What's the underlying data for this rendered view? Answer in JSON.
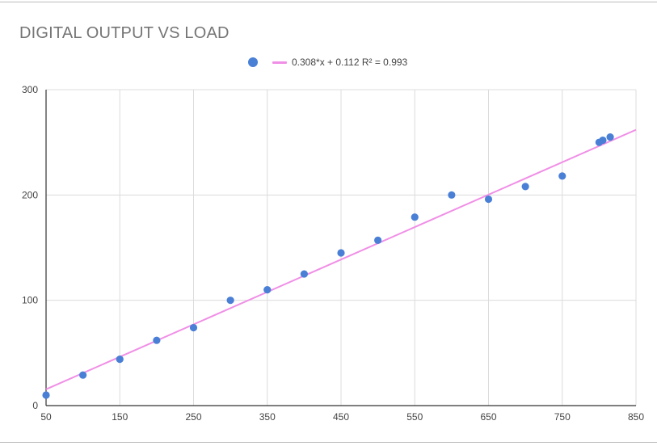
{
  "chart_data": {
    "type": "scatter",
    "title": "DIGITAL OUTPUT VS LOAD",
    "xlabel": "",
    "ylabel": "",
    "xlim": [
      50,
      850
    ],
    "ylim": [
      0,
      300
    ],
    "x_ticks": [
      "50",
      "150",
      "250",
      "350",
      "450",
      "550",
      "650",
      "750",
      "850"
    ],
    "y_ticks": [
      "0",
      "100",
      "200",
      "300"
    ],
    "grid": true,
    "legend_position": "top",
    "series": [
      {
        "color": "#4a7fd6",
        "points": [
          {
            "x": 50,
            "y": 10
          },
          {
            "x": 100,
            "y": 29
          },
          {
            "x": 150,
            "y": 44
          },
          {
            "x": 200,
            "y": 62
          },
          {
            "x": 250,
            "y": 74
          },
          {
            "x": 300,
            "y": 100
          },
          {
            "x": 350,
            "y": 110
          },
          {
            "x": 400,
            "y": 125
          },
          {
            "x": 450,
            "y": 145
          },
          {
            "x": 500,
            "y": 157
          },
          {
            "x": 550,
            "y": 179
          },
          {
            "x": 600,
            "y": 200
          },
          {
            "x": 650,
            "y": 196
          },
          {
            "x": 700,
            "y": 208
          },
          {
            "x": 750,
            "y": 218
          },
          {
            "x": 800,
            "y": 250
          },
          {
            "x": 805,
            "y": 252
          },
          {
            "x": 815,
            "y": 255
          }
        ]
      }
    ],
    "trendline": {
      "label": "0.308*x + 0.112 R² = 0.993",
      "slope": 0.308,
      "intercept": 0.112,
      "r_squared": 0.993,
      "color": "#f08fe6"
    }
  }
}
